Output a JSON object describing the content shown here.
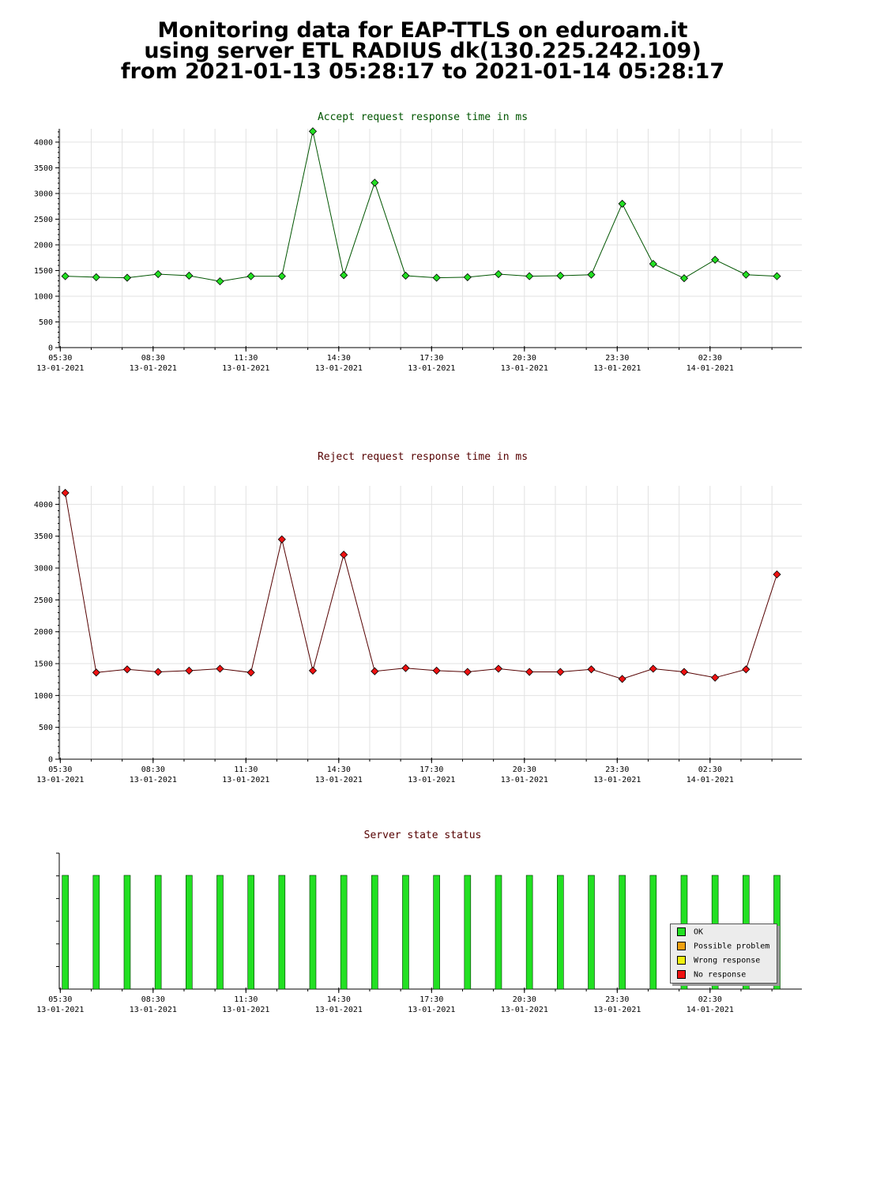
{
  "header": {
    "line1": "Monitoring data for EAP-TTLS on eduroam.it",
    "line2": "using server ETL RADIUS dk(130.225.242.109)",
    "line3": "from 2021-01-13 05:28:17 to 2021-01-14 05:28:17"
  },
  "colors": {
    "accept_marker": "#22e022",
    "accept_line": "#005500",
    "reject_marker": "#ee1111",
    "reject_line": "#550000",
    "status_bar": "#22e022",
    "title_accept": "#005500",
    "title_reject": "#550000"
  },
  "chart_data": [
    {
      "type": "line",
      "title": "Accept request response time in ms",
      "x_tick_labels": [
        [
          "05:30",
          "13-01-2021"
        ],
        [
          "08:30",
          "13-01-2021"
        ],
        [
          "11:30",
          "13-01-2021"
        ],
        [
          "14:30",
          "13-01-2021"
        ],
        [
          "17:30",
          "13-01-2021"
        ],
        [
          "20:30",
          "13-01-2021"
        ],
        [
          "23:30",
          "13-01-2021"
        ],
        [
          "02:30",
          "14-01-2021"
        ]
      ],
      "y_ticks": [
        0,
        500,
        1000,
        1500,
        2000,
        2500,
        3000,
        3500,
        4000
      ],
      "ylim": [
        0,
        4260
      ],
      "grid": true,
      "x": [
        "2021-01-13 05:40",
        "2021-01-13 06:40",
        "2021-01-13 07:40",
        "2021-01-13 08:40",
        "2021-01-13 09:40",
        "2021-01-13 10:40",
        "2021-01-13 11:40",
        "2021-01-13 12:40",
        "2021-01-13 13:40",
        "2021-01-13 14:40",
        "2021-01-13 15:40",
        "2021-01-13 16:40",
        "2021-01-13 17:40",
        "2021-01-13 18:40",
        "2021-01-13 19:40",
        "2021-01-13 20:40",
        "2021-01-13 21:40",
        "2021-01-13 22:40",
        "2021-01-13 23:40",
        "2021-01-14 00:40",
        "2021-01-14 01:40",
        "2021-01-14 02:40",
        "2021-01-14 03:40",
        "2021-01-14 04:40"
      ],
      "values": [
        1390,
        1370,
        1360,
        1430,
        1400,
        1290,
        1390,
        1390,
        4210,
        1410,
        3210,
        1400,
        1360,
        1370,
        1430,
        1390,
        1400,
        1420,
        2800,
        1630,
        1350,
        1710,
        1420,
        1390
      ]
    },
    {
      "type": "line",
      "title": "Reject request response time in ms",
      "x_tick_labels": [
        [
          "05:30",
          "13-01-2021"
        ],
        [
          "08:30",
          "13-01-2021"
        ],
        [
          "11:30",
          "13-01-2021"
        ],
        [
          "14:30",
          "13-01-2021"
        ],
        [
          "17:30",
          "13-01-2021"
        ],
        [
          "20:30",
          "13-01-2021"
        ],
        [
          "23:30",
          "13-01-2021"
        ],
        [
          "02:30",
          "14-01-2021"
        ]
      ],
      "y_ticks": [
        0,
        500,
        1000,
        1500,
        2000,
        2500,
        3000,
        3500,
        4000
      ],
      "ylim": [
        0,
        4290
      ],
      "grid": true,
      "x": [
        "2021-01-13 05:40",
        "2021-01-13 06:40",
        "2021-01-13 07:40",
        "2021-01-13 08:40",
        "2021-01-13 09:40",
        "2021-01-13 10:40",
        "2021-01-13 11:40",
        "2021-01-13 12:40",
        "2021-01-13 13:40",
        "2021-01-13 14:40",
        "2021-01-13 15:40",
        "2021-01-13 16:40",
        "2021-01-13 17:40",
        "2021-01-13 18:40",
        "2021-01-13 19:40",
        "2021-01-13 20:40",
        "2021-01-13 21:40",
        "2021-01-13 22:40",
        "2021-01-13 23:40",
        "2021-01-14 00:40",
        "2021-01-14 01:40",
        "2021-01-14 02:40",
        "2021-01-14 03:40",
        "2021-01-14 04:40"
      ],
      "values": [
        4180,
        1360,
        1410,
        1370,
        1390,
        1420,
        1360,
        3450,
        1390,
        3210,
        1380,
        1430,
        1390,
        1370,
        1420,
        1370,
        1370,
        1410,
        1260,
        1420,
        1370,
        1280,
        1410,
        2900
      ]
    },
    {
      "type": "bar",
      "title": "Server state status",
      "x_tick_labels": [
        [
          "05:30",
          "13-01-2021"
        ],
        [
          "08:30",
          "13-01-2021"
        ],
        [
          "11:30",
          "13-01-2021"
        ],
        [
          "14:30",
          "13-01-2021"
        ],
        [
          "17:30",
          "13-01-2021"
        ],
        [
          "20:30",
          "13-01-2021"
        ],
        [
          "23:30",
          "13-01-2021"
        ],
        [
          "02:30",
          "14-01-2021"
        ]
      ],
      "x": [
        "2021-01-13 05:40",
        "2021-01-13 06:40",
        "2021-01-13 07:40",
        "2021-01-13 08:40",
        "2021-01-13 09:40",
        "2021-01-13 10:40",
        "2021-01-13 11:40",
        "2021-01-13 12:40",
        "2021-01-13 13:40",
        "2021-01-13 14:40",
        "2021-01-13 15:40",
        "2021-01-13 16:40",
        "2021-01-13 17:40",
        "2021-01-13 18:40",
        "2021-01-13 19:40",
        "2021-01-13 20:40",
        "2021-01-13 21:40",
        "2021-01-13 22:40",
        "2021-01-13 23:40",
        "2021-01-14 00:40",
        "2021-01-14 01:40",
        "2021-01-14 02:40",
        "2021-01-14 03:40",
        "2021-01-14 04:40"
      ],
      "states": [
        "OK",
        "OK",
        "OK",
        "OK",
        "OK",
        "OK",
        "OK",
        "OK",
        "OK",
        "OK",
        "OK",
        "OK",
        "OK",
        "OK",
        "OK",
        "OK",
        "OK",
        "OK",
        "OK",
        "OK",
        "OK",
        "OK",
        "OK",
        "OK"
      ],
      "legend_position": "bottom-right",
      "legend": [
        {
          "label": "OK",
          "color": "#22e022"
        },
        {
          "label": "Possible problem",
          "color": "#f0a010"
        },
        {
          "label": "Wrong response",
          "color": "#f0f010"
        },
        {
          "label": "No response",
          "color": "#ee1111"
        }
      ]
    }
  ]
}
